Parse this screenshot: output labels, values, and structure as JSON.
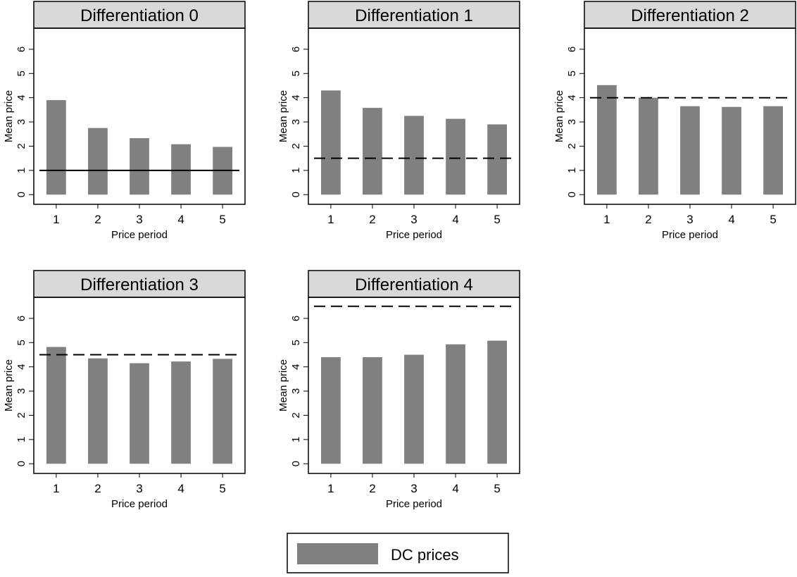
{
  "chart_data": [
    {
      "type": "bar",
      "title": "Differentiation 0",
      "x_label": "Price period",
      "y_label": "Mean price",
      "x": [
        1,
        2,
        3,
        4,
        5
      ],
      "series": [
        {
          "name": "DC prices",
          "color": "#808080",
          "values": [
            3.9,
            2.75,
            2.33,
            2.08,
            1.97
          ]
        }
      ],
      "reference_line": 1,
      "reference_style": "solid",
      "xlim": [
        0.46,
        5.54
      ],
      "xticks": [
        1,
        2,
        3,
        4,
        5
      ],
      "ylim": [
        -0.4,
        6.87
      ],
      "yticks": [
        0,
        1,
        2,
        3,
        4,
        5,
        6
      ]
    },
    {
      "type": "bar",
      "title": "Differentiation 1",
      "x_label": "Price period",
      "y_label": "Mean price",
      "x": [
        1,
        2,
        3,
        4,
        5
      ],
      "series": [
        {
          "name": "DC prices",
          "color": "#808080",
          "values": [
            4.3,
            3.58,
            3.25,
            3.13,
            2.9
          ]
        }
      ],
      "reference_line": 1.5,
      "reference_style": "dashed",
      "xlim": [
        0.46,
        5.54
      ],
      "xticks": [
        1,
        2,
        3,
        4,
        5
      ],
      "ylim": [
        -0.4,
        6.87
      ],
      "yticks": [
        0,
        1,
        2,
        3,
        4,
        5,
        6
      ]
    },
    {
      "type": "bar",
      "title": "Differentiation 2",
      "x_label": "Price period",
      "y_label": "Mean price",
      "x": [
        1,
        2,
        3,
        4,
        5
      ],
      "series": [
        {
          "name": "DC prices",
          "color": "#808080",
          "values": [
            4.52,
            4.0,
            3.65,
            3.62,
            3.65
          ]
        }
      ],
      "reference_line": 4,
      "reference_style": "dashed",
      "xlim": [
        0.46,
        5.54
      ],
      "xticks": [
        1,
        2,
        3,
        4,
        5
      ],
      "ylim": [
        -0.4,
        6.87
      ],
      "yticks": [
        0,
        1,
        2,
        3,
        4,
        5,
        6
      ]
    },
    {
      "type": "bar",
      "title": "Differentiation 3",
      "x_label": "Price period",
      "y_label": "Mean price",
      "x": [
        1,
        2,
        3,
        4,
        5
      ],
      "series": [
        {
          "name": "DC prices",
          "color": "#808080",
          "values": [
            4.82,
            4.35,
            4.15,
            4.22,
            4.33
          ]
        }
      ],
      "reference_line": 4.5,
      "reference_style": "dashed",
      "xlim": [
        0.46,
        5.54
      ],
      "xticks": [
        1,
        2,
        3,
        4,
        5
      ],
      "ylim": [
        -0.4,
        6.87
      ],
      "yticks": [
        0,
        1,
        2,
        3,
        4,
        5,
        6
      ]
    },
    {
      "type": "bar",
      "title": "Differentiation 4",
      "x_label": "Price period",
      "y_label": "Mean price",
      "x": [
        1,
        2,
        3,
        4,
        5
      ],
      "series": [
        {
          "name": "DC prices",
          "color": "#808080",
          "values": [
            4.4,
            4.4,
            4.5,
            4.93,
            5.08
          ]
        }
      ],
      "reference_line": 6.5,
      "reference_style": "dashed",
      "xlim": [
        0.46,
        5.54
      ],
      "xticks": [
        1,
        2,
        3,
        4,
        5
      ],
      "ylim": [
        -0.4,
        6.87
      ],
      "yticks": [
        0,
        1,
        2,
        3,
        4,
        5,
        6
      ]
    }
  ]
}
